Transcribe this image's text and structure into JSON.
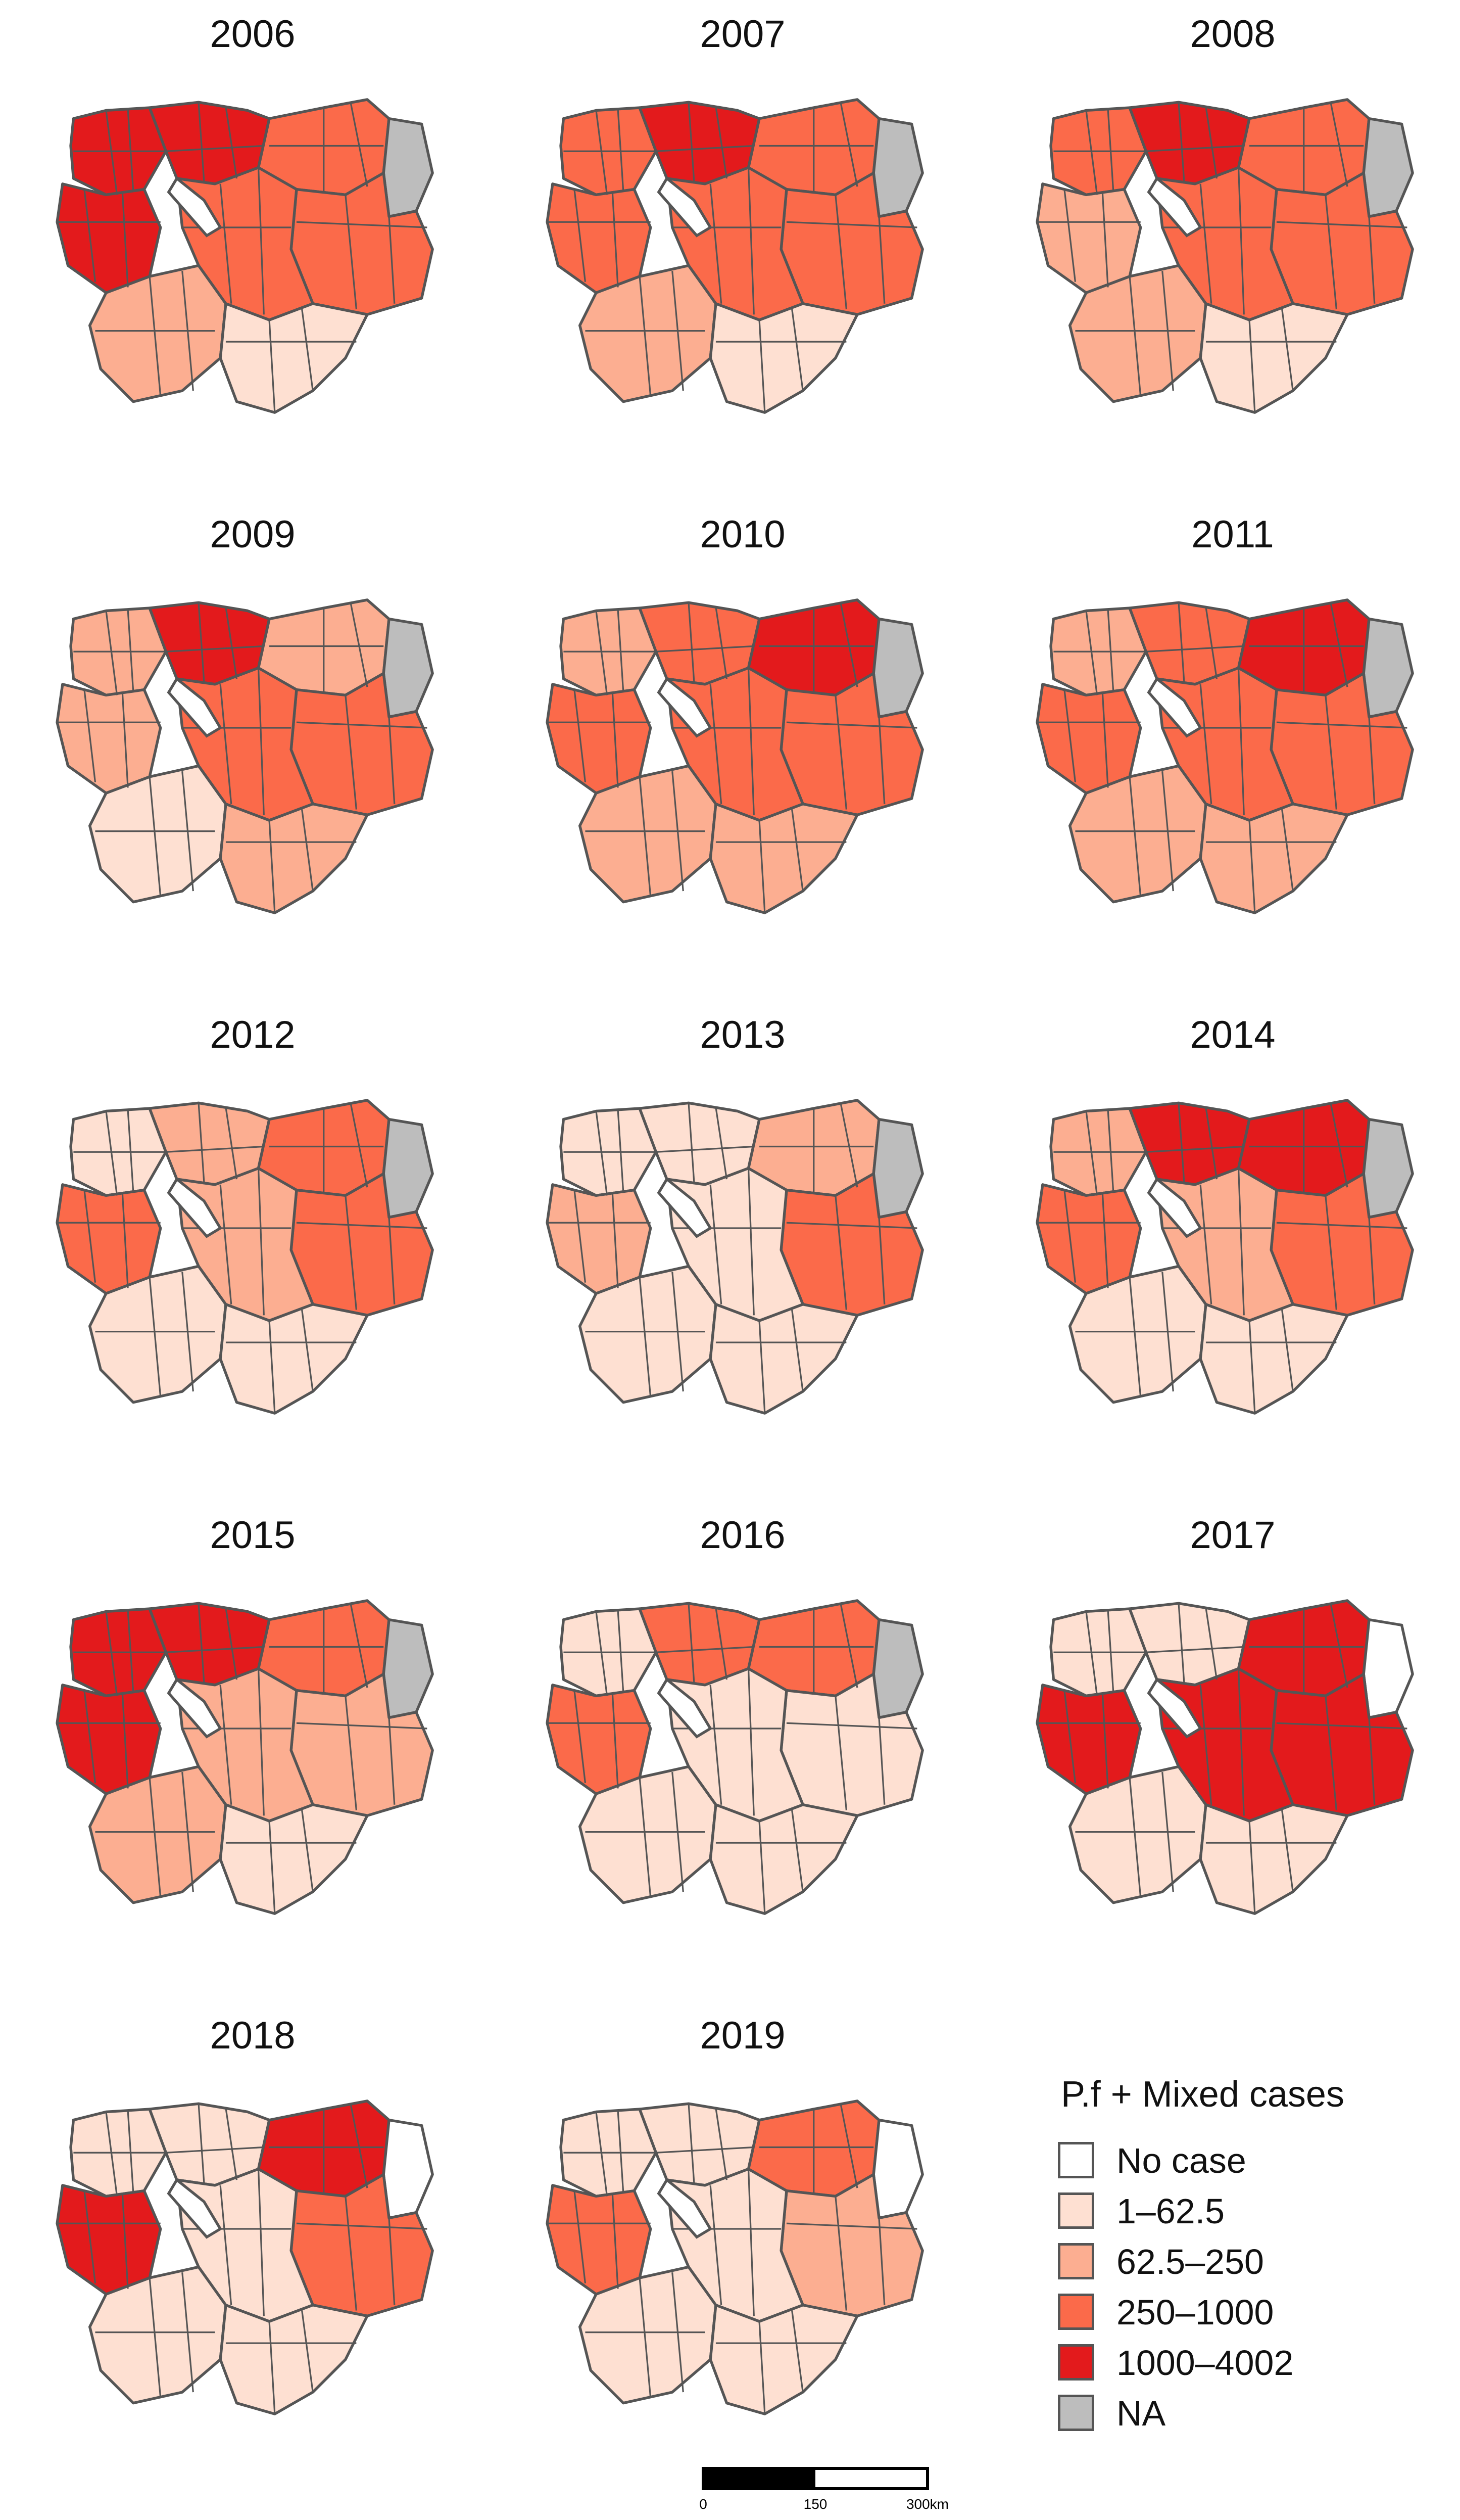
{
  "legend": {
    "title": "P.f + Mixed cases",
    "entries": [
      {
        "label": "No case",
        "color": "#ffffff"
      },
      {
        "label": "1–62.5",
        "color": "#fee0d2"
      },
      {
        "label": "62.5–250",
        "color": "#fcae91"
      },
      {
        "label": "250–1000",
        "color": "#fb6a4a"
      },
      {
        "label": "1000–4002",
        "color": "#e31a1c"
      },
      {
        "label": "NA",
        "color": "#bdbdbd"
      }
    ]
  },
  "scale_bar": {
    "ticks": [
      "0",
      "150",
      "300km"
    ]
  },
  "maps": [
    {
      "year": "2006",
      "regions": {
        "northwest": 4,
        "north": 4,
        "northeast": 3,
        "east": 3,
        "west": 4,
        "central": 3,
        "southwest": 2,
        "south": 1,
        "na": 5
      }
    },
    {
      "year": "2007",
      "regions": {
        "northwest": 3,
        "north": 4,
        "northeast": 3,
        "east": 3,
        "west": 3,
        "central": 3,
        "southwest": 2,
        "south": 1,
        "na": 5
      }
    },
    {
      "year": "2008",
      "regions": {
        "northwest": 3,
        "north": 4,
        "northeast": 3,
        "east": 3,
        "west": 2,
        "central": 3,
        "southwest": 2,
        "south": 1,
        "na": 5
      }
    },
    {
      "year": "2009",
      "regions": {
        "northwest": 2,
        "north": 4,
        "northeast": 2,
        "east": 3,
        "west": 2,
        "central": 3,
        "southwest": 1,
        "south": 2,
        "na": 5
      }
    },
    {
      "year": "2010",
      "regions": {
        "northwest": 2,
        "north": 3,
        "northeast": 4,
        "east": 3,
        "west": 3,
        "central": 3,
        "southwest": 2,
        "south": 2,
        "na": 5
      }
    },
    {
      "year": "2011",
      "regions": {
        "northwest": 2,
        "north": 3,
        "northeast": 4,
        "east": 3,
        "west": 3,
        "central": 3,
        "southwest": 2,
        "south": 2,
        "na": 5
      }
    },
    {
      "year": "2012",
      "regions": {
        "northwest": 1,
        "north": 2,
        "northeast": 3,
        "east": 3,
        "west": 3,
        "central": 2,
        "southwest": 1,
        "south": 1,
        "na": 5
      }
    },
    {
      "year": "2013",
      "regions": {
        "northwest": 1,
        "north": 1,
        "northeast": 2,
        "east": 3,
        "west": 2,
        "central": 1,
        "southwest": 1,
        "south": 1,
        "na": 5
      }
    },
    {
      "year": "2014",
      "regions": {
        "northwest": 2,
        "north": 4,
        "northeast": 4,
        "east": 3,
        "west": 3,
        "central": 2,
        "southwest": 1,
        "south": 1,
        "na": 5
      }
    },
    {
      "year": "2015",
      "regions": {
        "northwest": 4,
        "north": 4,
        "northeast": 3,
        "east": 2,
        "west": 4,
        "central": 2,
        "southwest": 2,
        "south": 1,
        "na": 5
      }
    },
    {
      "year": "2016",
      "regions": {
        "northwest": 1,
        "north": 3,
        "northeast": 3,
        "east": 1,
        "west": 3,
        "central": 1,
        "southwest": 1,
        "south": 1,
        "na": 5
      }
    },
    {
      "year": "2017",
      "regions": {
        "northwest": 1,
        "north": 1,
        "northeast": 4,
        "east": 4,
        "west": 4,
        "central": 4,
        "southwest": 1,
        "south": 1,
        "na": 0
      }
    },
    {
      "year": "2018",
      "regions": {
        "northwest": 1,
        "north": 1,
        "northeast": 4,
        "east": 3,
        "west": 4,
        "central": 1,
        "southwest": 1,
        "south": 1,
        "na": 0
      }
    },
    {
      "year": "2019",
      "regions": {
        "northwest": 1,
        "north": 1,
        "northeast": 3,
        "east": 2,
        "west": 3,
        "central": 1,
        "southwest": 1,
        "south": 1,
        "na": 0
      }
    }
  ]
}
